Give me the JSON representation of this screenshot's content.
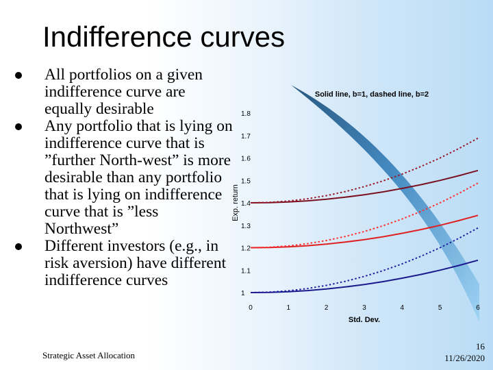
{
  "slide": {
    "title": "Indifference curves",
    "bullets": [
      "All portfolios on a given indifference curve are equally desirable",
      "Any portfolio that is lying on indifference curve that is ”further North-west” is more desirable than any portfolio that is lying on indifference curve that is ”less Northwest”",
      "Different investors (e.g., in risk aversion)  have different indifference curves"
    ],
    "footer_left": "Strategic Asset Allocation",
    "page_number": "16",
    "date": "11/26/2020"
  },
  "chart_data": {
    "type": "line",
    "title": "Solid line, b=1, dashed line, b=2",
    "xlabel": "Std. Dev.",
    "ylabel": "Exp. return",
    "xlim": [
      0,
      6
    ],
    "ylim": [
      1.0,
      1.8
    ],
    "x_ticks": [
      "0",
      "1",
      "2",
      "3",
      "4",
      "5",
      "6"
    ],
    "y_ticks": [
      "1",
      "1.1",
      "1.2",
      "1.3",
      "1.4",
      "1.5",
      "1.6",
      "1.7",
      "1.8"
    ],
    "x": [
      0,
      0.5,
      1,
      1.5,
      2,
      2.5,
      3,
      3.5,
      4,
      4.5,
      5,
      5.5,
      6
    ],
    "series": [
      {
        "style": "solid",
        "color": "#7a1020",
        "values": [
          1.4,
          1.401,
          1.404,
          1.409,
          1.416,
          1.425,
          1.436,
          1.449,
          1.464,
          1.481,
          1.5,
          1.521,
          1.544
        ]
      },
      {
        "style": "dashed",
        "color": "#9a1828",
        "values": [
          1.4,
          1.402,
          1.408,
          1.418,
          1.432,
          1.45,
          1.472,
          1.498,
          1.528,
          1.562,
          1.6,
          1.642,
          1.688
        ]
      },
      {
        "style": "solid",
        "color": "#e02020",
        "values": [
          1.2,
          1.201,
          1.204,
          1.209,
          1.216,
          1.225,
          1.236,
          1.249,
          1.264,
          1.281,
          1.3,
          1.321,
          1.344
        ]
      },
      {
        "style": "dashed",
        "color": "#ff3030",
        "values": [
          1.2,
          1.202,
          1.208,
          1.218,
          1.232,
          1.25,
          1.272,
          1.298,
          1.328,
          1.362,
          1.4,
          1.442,
          1.488
        ]
      },
      {
        "style": "solid",
        "color": "#1a1a8c",
        "values": [
          1.0,
          1.001,
          1.004,
          1.009,
          1.016,
          1.025,
          1.036,
          1.049,
          1.064,
          1.081,
          1.1,
          1.121,
          1.144
        ]
      },
      {
        "style": "dashed",
        "color": "#2020a0",
        "values": [
          1.0,
          1.002,
          1.008,
          1.018,
          1.032,
          1.05,
          1.072,
          1.098,
          1.128,
          1.162,
          1.2,
          1.242,
          1.288
        ]
      }
    ],
    "colors": {
      "ribbon_dark": "#245a86",
      "ribbon_light": "#8fc8ee"
    },
    "grid": false,
    "legend": "none"
  }
}
